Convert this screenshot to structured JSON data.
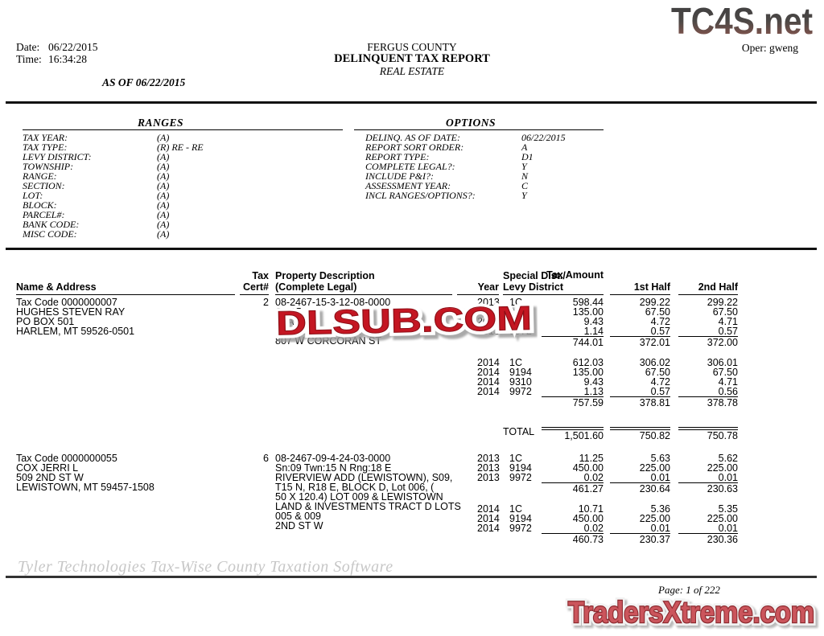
{
  "meta": {
    "date_label": "Date:",
    "date_value": "06/22/2015",
    "time_label": "Time:",
    "time_value": "16:34:28",
    "as_of": "AS OF 06/22/2015",
    "oper": "Oper: gweng"
  },
  "title": {
    "line1": "FERGUS COUNTY",
    "line2": "DELINQUENT TAX REPORT",
    "line3": "REAL ESTATE"
  },
  "watermarks": {
    "top_right": "TC4S.net",
    "center": "DLSUB.COM",
    "bottom_right": "TradersXtreme.com"
  },
  "ranges": {
    "title": "RANGES",
    "rows": [
      {
        "label": "TAX YEAR:",
        "value": "(A)"
      },
      {
        "label": "TAX TYPE:",
        "value": "(R) RE - RE"
      },
      {
        "label": "LEVY DISTRICT:",
        "value": "(A)"
      },
      {
        "label": "TOWNSHIP:",
        "value": "(A)"
      },
      {
        "label": "RANGE:",
        "value": "(A)"
      },
      {
        "label": "SECTION:",
        "value": "(A)"
      },
      {
        "label": "LOT:",
        "value": "(A)"
      },
      {
        "label": "BLOCK:",
        "value": "(A)"
      },
      {
        "label": "PARCEL#:",
        "value": "(A)"
      },
      {
        "label": "BANK CODE:",
        "value": "(A)"
      },
      {
        "label": "MISC CODE:",
        "value": "(A)"
      }
    ]
  },
  "options": {
    "title": "OPTIONS",
    "rows": [
      {
        "label": "DELINQ. AS OF DATE:",
        "value": "06/22/2015"
      },
      {
        "label": "REPORT SORT ORDER:",
        "value": "A"
      },
      {
        "label": "REPORT TYPE:",
        "value": "D1"
      },
      {
        "label": "COMPLETE LEGAL?:",
        "value": "Y"
      },
      {
        "label": "INCLUDE P&I?:",
        "value": "N"
      },
      {
        "label": "ASSESSMENT YEAR:",
        "value": "C"
      },
      {
        "label": "INCL RANGES/OPTIONS?:",
        "value": "Y"
      }
    ]
  },
  "report_table": {
    "headers": {
      "name": "Name & Address",
      "tax": "Tax",
      "cert": "Cert#",
      "desc1": "Property Description",
      "desc2": "(Complete Legal)",
      "year": "Year",
      "special": "Special Dist./",
      "levy": "Levy District",
      "amount": "Tax Amount",
      "half1": "1st Half",
      "half2": "2nd Half",
      "total_label": "TOTAL"
    },
    "blocks": [
      {
        "name_lines": [
          "Tax Code 0000000007",
          "HUGHES STEVEN RAY",
          "PO BOX 501",
          "HARLEM, MT 59526-0501"
        ],
        "cert": "2",
        "desc_lines": [
          "08-2467-15-3-12-08-0000",
          "Sn:15",
          "STAF",
          "E, BLOCK 005, Lot 002",
          "807 W CORCORAN ST"
        ],
        "groups": [
          {
            "rows": [
              {
                "year": "2013",
                "levy": "1C",
                "amount": "598.44",
                "h1": "299.22",
                "h2": "299.22"
              },
              {
                "year": "2013",
                "levy": "9194",
                "amount": "135.00",
                "h1": "67.50",
                "h2": "67.50"
              },
              {
                "year": "2013",
                "levy": "9310",
                "amount": "9.43",
                "h1": "4.72",
                "h2": "4.71"
              },
              {
                "year": "2013",
                "levy": "9972",
                "amount": "1.14",
                "h1": "0.57",
                "h2": "0.57"
              }
            ],
            "subtotal": {
              "amount": "744.01",
              "h1": "372.01",
              "h2": "372.00"
            }
          },
          {
            "rows": [
              {
                "year": "2014",
                "levy": "1C",
                "amount": "612.03",
                "h1": "306.02",
                "h2": "306.01"
              },
              {
                "year": "2014",
                "levy": "9194",
                "amount": "135.00",
                "h1": "67.50",
                "h2": "67.50"
              },
              {
                "year": "2014",
                "levy": "9310",
                "amount": "9.43",
                "h1": "4.72",
                "h2": "4.71"
              },
              {
                "year": "2014",
                "levy": "9972",
                "amount": "1.13",
                "h1": "0.57",
                "h2": "0.56"
              }
            ],
            "subtotal": {
              "amount": "757.59",
              "h1": "378.81",
              "h2": "378.78"
            }
          }
        ],
        "total": {
          "amount": "1,501.60",
          "h1": "750.82",
          "h2": "750.78"
        }
      },
      {
        "name_lines": [
          "Tax Code 0000000055",
          "COX JERRI L",
          "509 2ND ST W",
          "LEWISTOWN, MT 59457-1508"
        ],
        "cert": "6",
        "desc_lines": [
          "08-2467-09-4-24-03-0000",
          "Sn:09 Twn:15  N Rng:18  E",
          "RIVERVIEW ADD (LEWISTOWN), S09,",
          "T15 N, R18 E, BLOCK D, Lot 006, (",
          "50 X 120.4) LOT 009 & LEWISTOWN",
          "LAND & INVESTMENTS TRACT D LOTS",
          "005 & 009",
          "2ND ST W"
        ],
        "groups": [
          {
            "rows": [
              {
                "year": "2013",
                "levy": "1C",
                "amount": "11.25",
                "h1": "5.63",
                "h2": "5.62"
              },
              {
                "year": "2013",
                "levy": "9194",
                "amount": "450.00",
                "h1": "225.00",
                "h2": "225.00"
              },
              {
                "year": "2013",
                "levy": "9972",
                "amount": "0.02",
                "h1": "0.01",
                "h2": "0.01"
              }
            ],
            "subtotal": {
              "amount": "461.27",
              "h1": "230.64",
              "h2": "230.63"
            }
          },
          {
            "rows": [
              {
                "year": "2014",
                "levy": "1C",
                "amount": "10.71",
                "h1": "5.36",
                "h2": "5.35"
              },
              {
                "year": "2014",
                "levy": "9194",
                "amount": "450.00",
                "h1": "225.00",
                "h2": "225.00"
              },
              {
                "year": "2014",
                "levy": "9972",
                "amount": "0.02",
                "h1": "0.01",
                "h2": "0.01"
              }
            ],
            "subtotal": {
              "amount": "460.73",
              "h1": "230.37",
              "h2": "230.36"
            }
          }
        ]
      }
    ]
  },
  "footer": {
    "software": "Tyler Technologies Tax-Wise County Taxation Software",
    "page": "Page: 1 of 222"
  },
  "colors": {
    "watermark_red": "#c41420",
    "watermark_red_soft": "#cb555c",
    "logo_dark": "#414143",
    "logo_rust": "#8f6057",
    "rule_black": "#111111",
    "footer_gray": "#c7c7c7"
  }
}
